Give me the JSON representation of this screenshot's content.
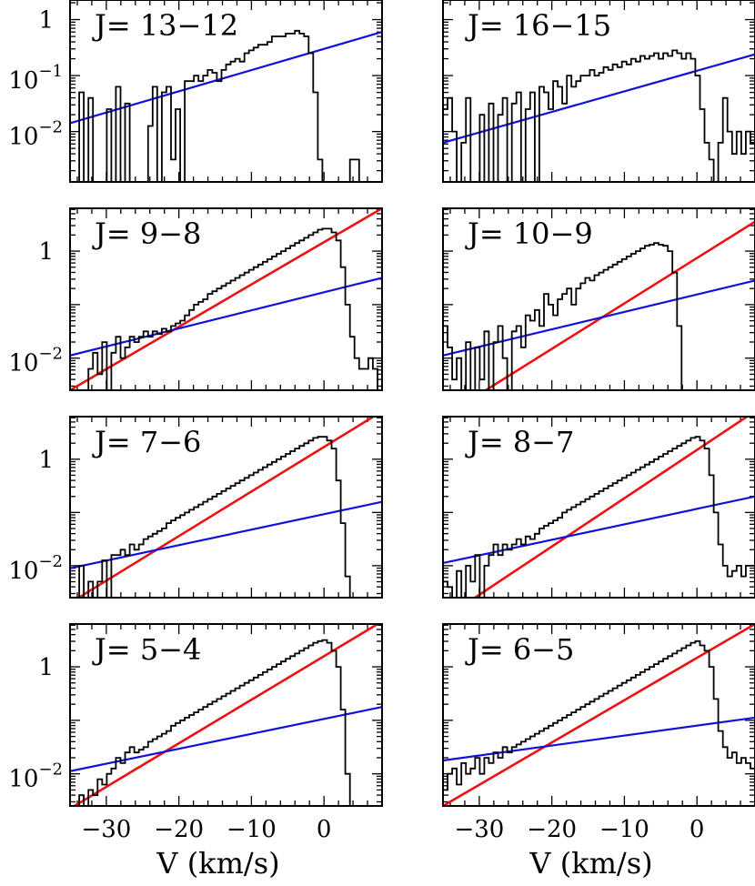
{
  "figure": {
    "xlabel": "V (km/s)",
    "colors": {
      "frame": "#000000",
      "histogram": "#000000",
      "fast_fit": "#ee1111",
      "slow_fit": "#1111dd"
    }
  },
  "chart_data": [
    {
      "type": "line",
      "label": "J= 13−12",
      "xlim": [
        -35,
        8
      ],
      "ylim": [
        -2.9,
        0.35
      ],
      "y_scale": "log",
      "x_ticks": [
        -30,
        -20,
        -10,
        0
      ],
      "x_tick_labels": [],
      "y_ticks": [
        0,
        -1,
        -2
      ],
      "y_tick_labels": [
        {
          "base": "1",
          "exp": ""
        },
        {
          "base": "10",
          "exp": "−1"
        },
        {
          "base": "10",
          "exp": "−2"
        }
      ],
      "spectrum_log10": [
        -2.9,
        -2.9,
        -1.3,
        -2.9,
        -1.4,
        -2.9,
        -2.9,
        -2.9,
        -1.6,
        -2.9,
        -1.2,
        -2.9,
        -1.5,
        -2.9,
        -2.9,
        -2.9,
        -2.9,
        -1.9,
        -1.2,
        -2.9,
        -1.3,
        -1.2,
        -2.5,
        -1.6,
        -2.9,
        -1.1,
        -1.1,
        -1.0,
        -1.1,
        -1.0,
        -0.9,
        -0.95,
        -1.1,
        -0.9,
        -0.8,
        -0.75,
        -0.7,
        -0.75,
        -0.6,
        -0.55,
        -0.5,
        -0.45,
        -0.45,
        -0.4,
        -0.3,
        -0.3,
        -0.3,
        -0.25,
        -0.25,
        -0.2,
        -0.25,
        -0.3,
        -0.6,
        -1.3,
        -2.5,
        -2.9,
        -2.9,
        -2.9,
        -2.9,
        -2.9,
        -2.9,
        -2.5,
        -2.5,
        -2.9,
        -2.9,
        -2.9,
        -2.9,
        -2.9
      ],
      "fits": [
        {
          "kind": "slow",
          "x": [
            -35,
            8
          ],
          "y_log10": [
            -1.85,
            -0.22
          ]
        }
      ]
    },
    {
      "type": "line",
      "label": "J= 16−15",
      "xlim": [
        -35,
        8
      ],
      "ylim": [
        -2.9,
        0.35
      ],
      "y_scale": "log",
      "x_ticks": [
        -30,
        -20,
        -10,
        0
      ],
      "x_tick_labels": [],
      "y_ticks": [
        0,
        -1,
        -2
      ],
      "y_tick_labels": [],
      "spectrum_log10": [
        -1.6,
        -1.4,
        -2.0,
        -2.9,
        -2.2,
        -1.4,
        -2.9,
        -2.9,
        -1.7,
        -2.9,
        -1.5,
        -2.9,
        -1.7,
        -1.4,
        -2.9,
        -1.5,
        -1.3,
        -2.9,
        -1.6,
        -1.3,
        -2.9,
        -1.2,
        -1.3,
        -1.6,
        -1.1,
        -1.2,
        -1.5,
        -1.0,
        -1.2,
        -1.1,
        -1.0,
        -1.0,
        -0.9,
        -1.0,
        -0.95,
        -0.85,
        -0.9,
        -0.8,
        -0.85,
        -0.75,
        -0.8,
        -0.7,
        -0.75,
        -0.65,
        -0.7,
        -0.65,
        -0.6,
        -0.7,
        -0.6,
        -0.65,
        -0.55,
        -0.6,
        -0.7,
        -0.6,
        -0.7,
        -1.0,
        -1.6,
        -2.2,
        -2.5,
        -2.9,
        -2.2,
        -1.4,
        -2.0,
        -2.4,
        -2.0,
        -2.4,
        -2.0,
        -2.2
      ],
      "fits": [
        {
          "kind": "slow",
          "x": [
            -35,
            8
          ],
          "y_log10": [
            -2.2,
            -0.62
          ]
        }
      ]
    },
    {
      "type": "line",
      "label": "J= 9−8",
      "xlim": [
        -35,
        8
      ],
      "ylim": [
        -2.6,
        0.8
      ],
      "y_scale": "log",
      "x_ticks": [
        -30,
        -20,
        -10,
        0
      ],
      "x_tick_labels": [],
      "y_ticks": [
        0,
        -2
      ],
      "y_tick_labels": [
        {
          "base": "1",
          "exp": ""
        },
        {
          "base": "10",
          "exp": "−2"
        }
      ],
      "spectrum_log10": [
        -2.6,
        -2.6,
        -2.6,
        -2.6,
        -2.2,
        -1.9,
        -2.3,
        -1.7,
        -2.6,
        -1.9,
        -1.6,
        -2.0,
        -1.8,
        -1.6,
        -1.7,
        -1.6,
        -1.5,
        -1.6,
        -1.5,
        -1.55,
        -1.45,
        -1.5,
        -1.4,
        -1.35,
        -1.3,
        -1.2,
        -1.1,
        -1.0,
        -0.95,
        -0.9,
        -0.8,
        -0.75,
        -0.7,
        -0.65,
        -0.6,
        -0.55,
        -0.5,
        -0.45,
        -0.4,
        -0.35,
        -0.3,
        -0.25,
        -0.2,
        -0.15,
        -0.1,
        -0.05,
        0.0,
        0.05,
        0.1,
        0.15,
        0.2,
        0.25,
        0.3,
        0.35,
        0.4,
        0.42,
        0.42,
        0.35,
        0.2,
        -0.3,
        -1.0,
        -1.6,
        -2.0,
        -2.2,
        -2.2,
        -2.0,
        -2.2,
        -2.6
      ],
      "fits": [
        {
          "kind": "fast",
          "x": [
            -35,
            8
          ],
          "y_log10": [
            -2.6,
            0.8
          ]
        },
        {
          "kind": "slow",
          "x": [
            -35,
            8
          ],
          "y_log10": [
            -1.95,
            -0.5
          ]
        }
      ]
    },
    {
      "type": "line",
      "label": "J= 10−9",
      "xlim": [
        -35,
        8
      ],
      "ylim": [
        -2.6,
        0.8
      ],
      "y_scale": "log",
      "x_ticks": [
        -30,
        -20,
        -10,
        0
      ],
      "x_tick_labels": [],
      "y_ticks": [
        0,
        -2
      ],
      "y_tick_labels": [],
      "spectrum_log10": [
        -1.4,
        -1.8,
        -2.4,
        -2.0,
        -2.6,
        -1.7,
        -2.6,
        -1.8,
        -2.4,
        -1.5,
        -2.6,
        -1.7,
        -1.4,
        -2.0,
        -2.6,
        -1.5,
        -1.4,
        -1.8,
        -1.2,
        -1.3,
        -1.1,
        -1.4,
        -0.8,
        -1.0,
        -1.2,
        -0.9,
        -0.8,
        -0.7,
        -1.0,
        -0.7,
        -0.6,
        -0.5,
        -0.55,
        -0.45,
        -0.4,
        -0.35,
        -0.3,
        -0.25,
        -0.2,
        -0.15,
        -0.1,
        -0.05,
        0.0,
        0.05,
        0.1,
        0.12,
        0.15,
        0.12,
        0.1,
        0.0,
        -0.4,
        -1.4,
        -2.6,
        -2.6,
        -2.6,
        -2.6,
        -2.6,
        -2.6,
        -2.6,
        -2.6,
        -2.6,
        -2.6,
        -2.6,
        -2.6,
        -2.6,
        -2.6,
        -2.6,
        -2.6
      ],
      "fits": [
        {
          "kind": "fast",
          "x": [
            -35,
            8
          ],
          "y_log10": [
            -3.1,
            0.55
          ]
        },
        {
          "kind": "slow",
          "x": [
            -35,
            8
          ],
          "y_log10": [
            -1.95,
            -0.55
          ]
        }
      ]
    },
    {
      "type": "line",
      "label": "J= 7−6",
      "xlim": [
        -35,
        8
      ],
      "ylim": [
        -2.6,
        0.8
      ],
      "y_scale": "log",
      "x_ticks": [
        -30,
        -20,
        -10,
        0
      ],
      "x_tick_labels": [],
      "y_ticks": [
        0,
        -2
      ],
      "y_tick_labels": [
        {
          "base": "1",
          "exp": ""
        },
        {
          "base": "10",
          "exp": "−2"
        }
      ],
      "spectrum_log10": [
        -2.6,
        -2.6,
        -2.0,
        -2.6,
        -2.3,
        -2.6,
        -2.3,
        -1.9,
        -2.6,
        -1.8,
        -1.8,
        -1.7,
        -1.8,
        -1.6,
        -1.7,
        -1.6,
        -1.5,
        -1.45,
        -1.4,
        -1.35,
        -1.3,
        -1.2,
        -1.15,
        -1.1,
        -1.05,
        -1.0,
        -0.95,
        -0.9,
        -0.85,
        -0.8,
        -0.75,
        -0.7,
        -0.65,
        -0.6,
        -0.55,
        -0.5,
        -0.45,
        -0.4,
        -0.35,
        -0.3,
        -0.25,
        -0.2,
        -0.15,
        -0.1,
        -0.05,
        0.0,
        0.05,
        0.1,
        0.15,
        0.2,
        0.25,
        0.3,
        0.35,
        0.4,
        0.42,
        0.42,
        0.35,
        0.2,
        -0.4,
        -1.2,
        -2.2,
        -2.6,
        -2.6,
        -2.6,
        -2.6,
        -2.6,
        -2.6,
        -2.6
      ],
      "fits": [
        {
          "kind": "fast",
          "x": [
            -35,
            8
          ],
          "y_log10": [
            -2.7,
            0.9
          ]
        },
        {
          "kind": "slow",
          "x": [
            -35,
            8
          ],
          "y_log10": [
            -2.05,
            -0.8
          ]
        }
      ]
    },
    {
      "type": "line",
      "label": "J= 8−7",
      "xlim": [
        -35,
        8
      ],
      "ylim": [
        -2.6,
        0.8
      ],
      "y_scale": "log",
      "x_ticks": [
        -30,
        -20,
        -10,
        0
      ],
      "x_tick_labels": [],
      "y_ticks": [
        0,
        -2
      ],
      "y_tick_labels": [],
      "spectrum_log10": [
        -2.3,
        -2.4,
        -2.6,
        -2.1,
        -2.6,
        -2.0,
        -2.3,
        -1.8,
        -2.6,
        -2.0,
        -1.8,
        -1.6,
        -1.8,
        -1.6,
        -1.7,
        -1.6,
        -1.5,
        -1.6,
        -1.45,
        -1.5,
        -1.4,
        -1.3,
        -1.25,
        -1.2,
        -1.15,
        -1.1,
        -1.0,
        -0.95,
        -0.9,
        -0.85,
        -0.8,
        -0.75,
        -0.7,
        -0.65,
        -0.6,
        -0.55,
        -0.5,
        -0.45,
        -0.4,
        -0.35,
        -0.3,
        -0.25,
        -0.2,
        -0.15,
        -0.1,
        -0.05,
        0.0,
        0.05,
        0.1,
        0.15,
        0.2,
        0.25,
        0.3,
        0.35,
        0.4,
        0.42,
        0.35,
        0.2,
        -0.3,
        -1.0,
        -1.6,
        -2.0,
        -2.2,
        -2.1,
        -2.0,
        -2.2,
        -2.0,
        -2.0
      ],
      "fits": [
        {
          "kind": "fast",
          "x": [
            -35,
            8
          ],
          "y_log10": [
            -3.0,
            0.9
          ]
        },
        {
          "kind": "slow",
          "x": [
            -35,
            8
          ],
          "y_log10": [
            -1.95,
            -0.7
          ]
        }
      ]
    },
    {
      "type": "line",
      "label": "J= 5−4",
      "xlim": [
        -35,
        8
      ],
      "ylim": [
        -2.6,
        0.8
      ],
      "y_scale": "log",
      "x_ticks": [
        -30,
        -20,
        -10,
        0
      ],
      "x_tick_labels": [
        "−30",
        "−20",
        "−10",
        "0"
      ],
      "y_ticks": [
        0,
        -2
      ],
      "y_tick_labels": [
        {
          "base": "1",
          "exp": ""
        },
        {
          "base": "10",
          "exp": "−2"
        }
      ],
      "spectrum_log10": [
        -2.6,
        -2.6,
        -2.4,
        -2.6,
        -2.3,
        -2.4,
        -2.1,
        -2.2,
        -2.0,
        -1.9,
        -1.7,
        -1.8,
        -1.6,
        -1.5,
        -1.6,
        -1.55,
        -1.5,
        -1.4,
        -1.35,
        -1.3,
        -1.25,
        -1.2,
        -1.1,
        -1.05,
        -1.0,
        -0.95,
        -0.9,
        -0.85,
        -0.8,
        -0.75,
        -0.7,
        -0.65,
        -0.6,
        -0.55,
        -0.5,
        -0.45,
        -0.4,
        -0.35,
        -0.3,
        -0.25,
        -0.2,
        -0.15,
        -0.1,
        -0.05,
        0.0,
        0.05,
        0.1,
        0.15,
        0.2,
        0.25,
        0.3,
        0.35,
        0.4,
        0.45,
        0.48,
        0.5,
        0.45,
        0.3,
        0.0,
        -0.8,
        -2.0,
        -2.6,
        -2.6,
        -2.6,
        -2.6,
        -2.6,
        -2.6,
        -2.6
      ],
      "fits": [
        {
          "kind": "fast",
          "x": [
            -35,
            8
          ],
          "y_log10": [
            -2.65,
            0.85
          ]
        },
        {
          "kind": "slow",
          "x": [
            -35,
            8
          ],
          "y_log10": [
            -1.95,
            -0.75
          ]
        }
      ]
    },
    {
      "type": "line",
      "label": "J= 6−5",
      "xlim": [
        -35,
        8
      ],
      "ylim": [
        -2.6,
        0.8
      ],
      "y_scale": "log",
      "x_ticks": [
        -30,
        -20,
        -10,
        0
      ],
      "x_tick_labels": [
        "−30",
        "−20",
        "−10",
        "0"
      ],
      "y_ticks": [
        0,
        -2
      ],
      "y_tick_labels": [],
      "spectrum_log10": [
        -2.3,
        -2.0,
        -1.9,
        -2.2,
        -1.8,
        -2.0,
        -1.9,
        -1.7,
        -2.0,
        -1.7,
        -1.8,
        -1.6,
        -1.7,
        -1.5,
        -1.6,
        -1.5,
        -1.45,
        -1.4,
        -1.35,
        -1.3,
        -1.25,
        -1.2,
        -1.15,
        -1.1,
        -1.05,
        -1.0,
        -0.95,
        -0.9,
        -0.85,
        -0.8,
        -0.75,
        -0.7,
        -0.65,
        -0.6,
        -0.55,
        -0.5,
        -0.45,
        -0.4,
        -0.35,
        -0.3,
        -0.25,
        -0.2,
        -0.15,
        -0.1,
        -0.05,
        0.0,
        0.05,
        0.1,
        0.15,
        0.2,
        0.25,
        0.3,
        0.35,
        0.4,
        0.45,
        0.48,
        0.4,
        0.3,
        0.0,
        -0.6,
        -1.2,
        -1.5,
        -1.7,
        -1.6,
        -1.8,
        -1.7,
        -1.8,
        -1.9
      ],
      "fits": [
        {
          "kind": "fast",
          "x": [
            -35,
            8
          ],
          "y_log10": [
            -2.6,
            0.8
          ]
        },
        {
          "kind": "slow",
          "x": [
            -35,
            8
          ],
          "y_log10": [
            -1.75,
            -0.95
          ]
        }
      ]
    }
  ]
}
